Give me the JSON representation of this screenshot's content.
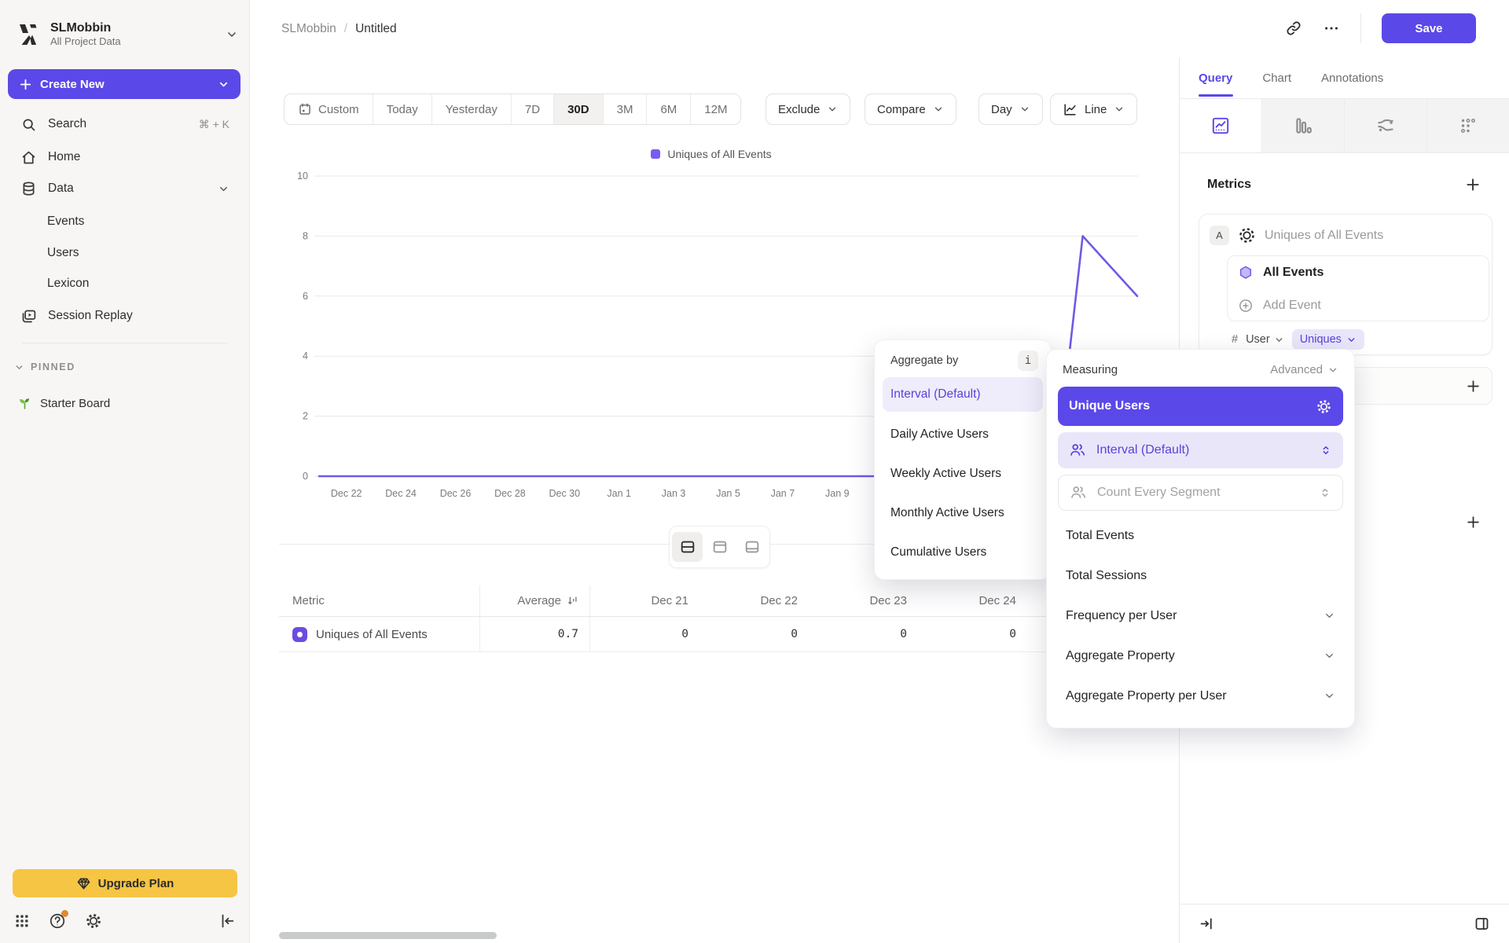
{
  "workspace": {
    "name": "SLMobbin",
    "subtitle": "All Project Data"
  },
  "sidebar": {
    "create_new": "Create New",
    "items": [
      {
        "label": "Search",
        "shortcut": "⌘ + K"
      },
      {
        "label": "Home"
      },
      {
        "label": "Data"
      },
      {
        "label": "Events"
      },
      {
        "label": "Users"
      },
      {
        "label": "Lexicon"
      },
      {
        "label": "Session Replay"
      }
    ],
    "pinned_label": "PINNED",
    "pinned_board": "Starter Board",
    "upgrade_label": "Upgrade Plan"
  },
  "header": {
    "breadcrumb_project": "SLMobbin",
    "breadcrumb_separator": "/",
    "breadcrumb_title": "Untitled",
    "save_label": "Save"
  },
  "toolbar": {
    "ranges": [
      "Custom",
      "Today",
      "Yesterday",
      "7D",
      "30D",
      "3M",
      "6M",
      "12M"
    ],
    "active_range": "30D",
    "exclude_label": "Exclude",
    "compare_label": "Compare",
    "interval_label": "Day",
    "chart_type_label": "Line"
  },
  "chart_data": {
    "type": "line",
    "title": "",
    "legend": [
      {
        "label": "Uniques of All Events",
        "color": "#7a5cf0"
      }
    ],
    "legend_position": "top",
    "grid": "horizontal",
    "ylim": [
      0,
      10
    ],
    "y_ticks": [
      0,
      2,
      4,
      6,
      8,
      10
    ],
    "x": [
      "Dec 21",
      "Dec 22",
      "Dec 23",
      "Dec 24",
      "Dec 25",
      "Dec 26",
      "Dec 27",
      "Dec 28",
      "Dec 29",
      "Dec 30",
      "Dec 31",
      "Jan 1",
      "Jan 2",
      "Jan 3",
      "Jan 4",
      "Jan 5",
      "Jan 6",
      "Jan 7",
      "Jan 8",
      "Jan 9",
      "Jan 10",
      "Jan 11",
      "Jan 12",
      "Jan 13",
      "Jan 14",
      "Jan 15",
      "Jan 16",
      "Jan 17",
      "Jan 18",
      "Jan 19",
      "Jan 20"
    ],
    "x_tick_start": 1,
    "x_tick_step": 2,
    "series": [
      {
        "name": "Uniques of All Events",
        "color": "#6e5ae6",
        "values": [
          0,
          0,
          0,
          0,
          0,
          0,
          0,
          0,
          0,
          0,
          0,
          0,
          0,
          0,
          0,
          0,
          0,
          0,
          0,
          0,
          0,
          0,
          0,
          0,
          0,
          0,
          0,
          0,
          8,
          7,
          6
        ]
      }
    ]
  },
  "table": {
    "columns": [
      "Metric",
      "Average",
      "Dec 21",
      "Dec 22",
      "Dec 23",
      "Dec 24"
    ],
    "rows": [
      {
        "metric": "Uniques of All Events",
        "average": "0.7",
        "values": [
          "0",
          "0",
          "0",
          "0"
        ]
      }
    ]
  },
  "aggregate_popup": {
    "title": "Aggregate by",
    "info_icon": "i",
    "selected": "Interval (Default)",
    "options": [
      "Interval (Default)",
      "Daily Active Users",
      "Weekly Active Users",
      "Monthly Active Users",
      "Cumulative Users"
    ]
  },
  "measuring_popup": {
    "title": "Measuring",
    "advanced_label": "Advanced",
    "selected": "Unique Users",
    "interval_row": "Interval (Default)",
    "segment_row": "Count Every Segment",
    "options": [
      "Total Events",
      "Total Sessions",
      "Frequency per User",
      "Aggregate Property",
      "Aggregate Property per User"
    ]
  },
  "query_panel": {
    "tabs": [
      "Query",
      "Chart",
      "Annotations"
    ],
    "active_tab": "Query",
    "metrics_title": "Metrics",
    "metric": {
      "badge": "A",
      "name": "Uniques of All Events",
      "event_label": "All Events",
      "add_event_label": "Add Event",
      "hash": "#",
      "counting_label": "User",
      "aggregation_label": "Uniques"
    }
  },
  "colors": {
    "accent": "#5b48e8",
    "line": "#6e5ae6",
    "accent_light_bg": "#e9e6fa",
    "accent_text": "#5743d9",
    "upgrade_yellow": "#f6c544",
    "notification_orange": "#e0892f"
  }
}
